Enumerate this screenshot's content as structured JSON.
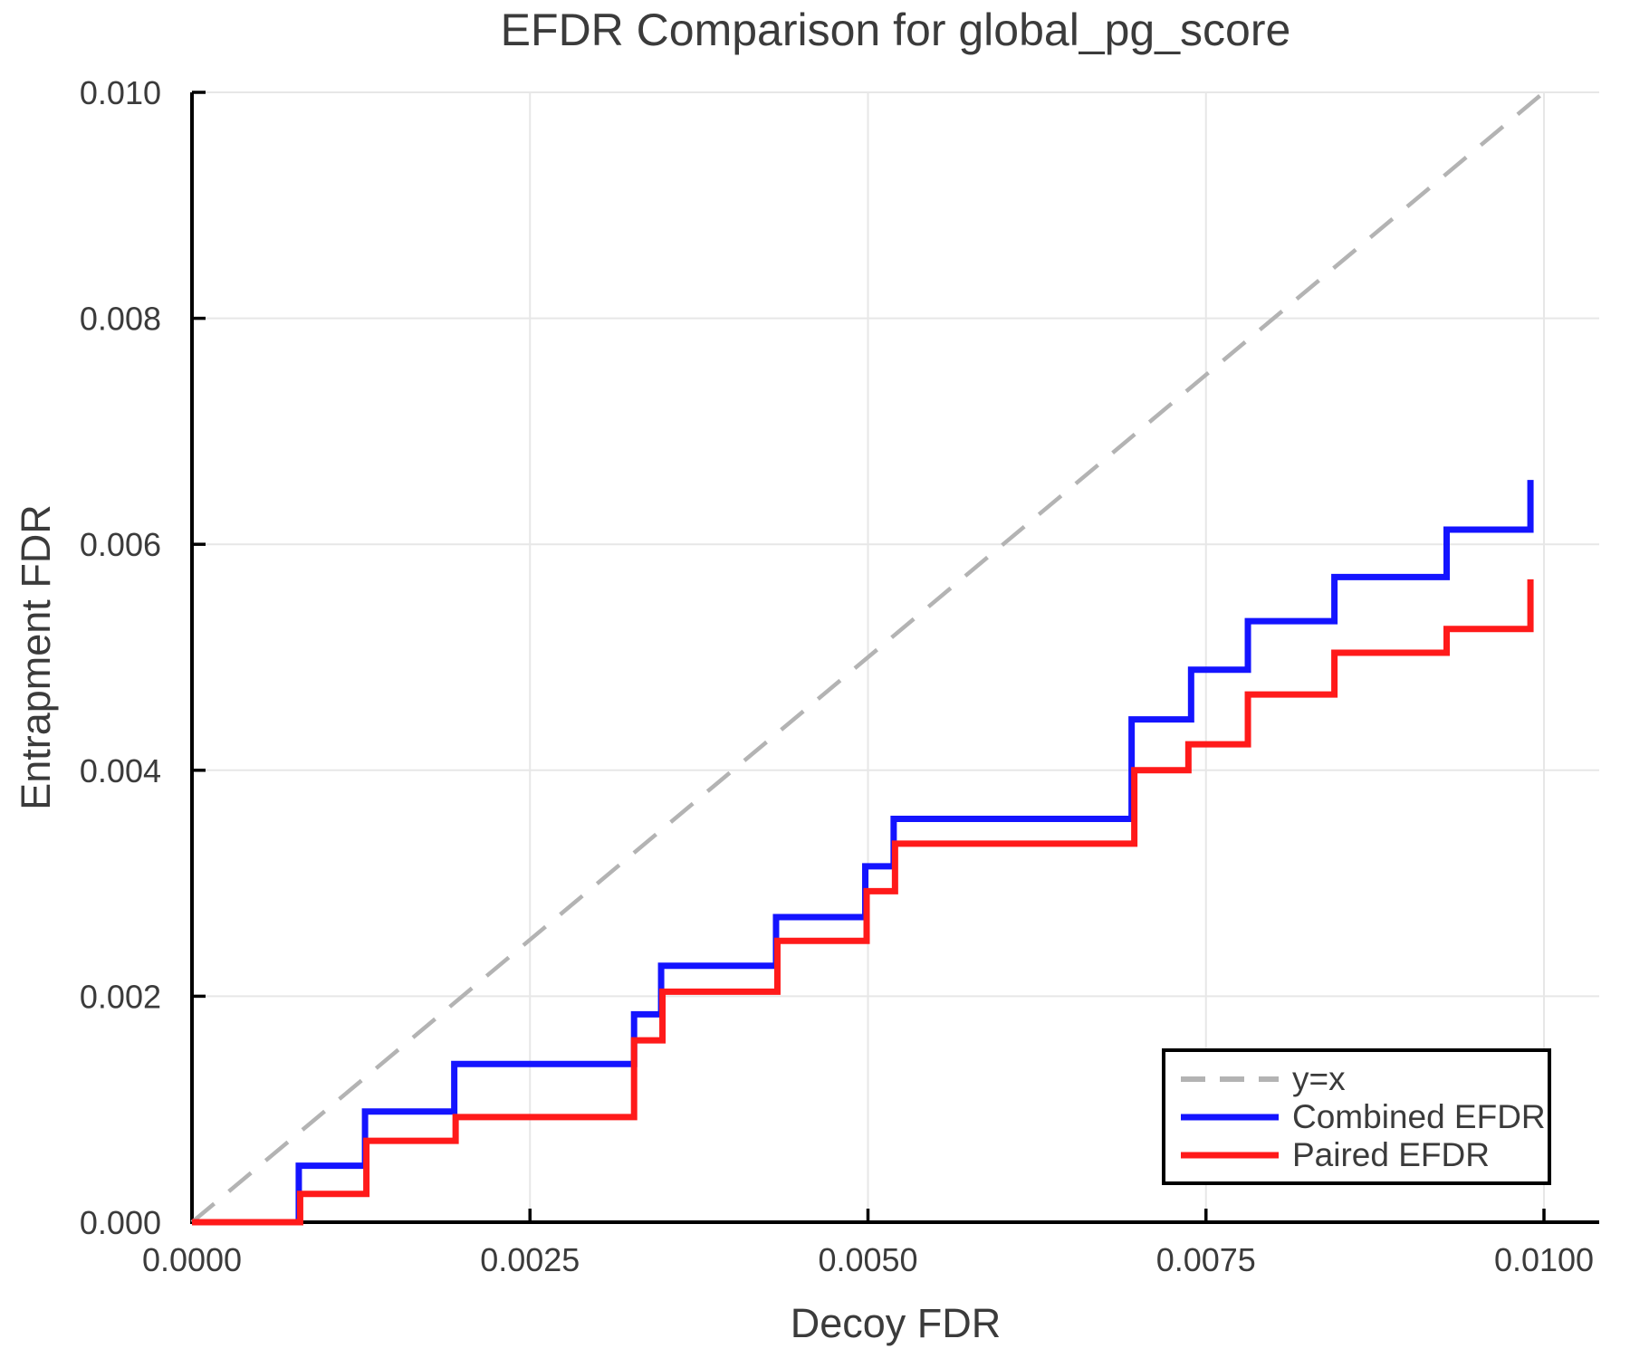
{
  "chart_data": {
    "type": "line",
    "title": "EFDR Comparison for global_pg_score",
    "xlabel": "Decoy FDR",
    "ylabel": "Entrapment FDR",
    "xlim": [
      0,
      0.01041
    ],
    "ylim": [
      0,
      0.01
    ],
    "grid": true,
    "legend_position": "lower right",
    "colors": {
      "grid": "#e7e7e7",
      "text": "#3b3b3b",
      "axis": "#000000",
      "background": "#ffffff"
    },
    "x_ticks": {
      "values": [
        0,
        0.0025,
        0.005,
        0.0075,
        0.01
      ],
      "labels": [
        "0.0000",
        "0.0025",
        "0.0050",
        "0.0075",
        "0.0100"
      ]
    },
    "y_ticks": {
      "values": [
        0,
        0.002,
        0.004,
        0.006,
        0.008,
        0.01
      ],
      "labels": [
        "0.000",
        "0.002",
        "0.004",
        "0.006",
        "0.008",
        "0.010"
      ]
    },
    "series": [
      {
        "name": "identity",
        "label": "y=x",
        "type": "line",
        "style": "dashed",
        "color": "#b3b3b3",
        "points": [
          [
            0,
            0
          ],
          [
            0.01,
            0.01
          ]
        ]
      },
      {
        "name": "combined-efdr",
        "label": "Combined EFDR",
        "type": "step_post",
        "style": "solid",
        "color": "#1414ff",
        "points": [
          [
            0,
            0
          ],
          [
            0.00079,
            0.0005
          ],
          [
            0.00128,
            0.00098
          ],
          [
            0.00194,
            0.0014
          ],
          [
            0.00327,
            0.00184
          ],
          [
            0.00347,
            0.00227
          ],
          [
            0.00432,
            0.0027
          ],
          [
            0.00498,
            0.00315
          ],
          [
            0.00519,
            0.00357
          ],
          [
            0.00695,
            0.00445
          ],
          [
            0.00739,
            0.00489
          ],
          [
            0.00781,
            0.00532
          ],
          [
            0.00845,
            0.00571
          ],
          [
            0.00928,
            0.00613
          ],
          [
            0.0099,
            0.00657
          ]
        ]
      },
      {
        "name": "paired-efdr",
        "label": "Paired EFDR",
        "type": "step_post",
        "style": "solid",
        "color": "#ff1a1a",
        "points": [
          [
            0,
            0
          ],
          [
            0.0008,
            0.00025
          ],
          [
            0.00129,
            0.00072
          ],
          [
            0.00195,
            0.00093
          ],
          [
            0.00327,
            0.00161
          ],
          [
            0.00348,
            0.00204
          ],
          [
            0.00433,
            0.00249
          ],
          [
            0.00499,
            0.00293
          ],
          [
            0.0052,
            0.00335
          ],
          [
            0.00697,
            0.004
          ],
          [
            0.00737,
            0.00423
          ],
          [
            0.00781,
            0.00467
          ],
          [
            0.00845,
            0.00504
          ],
          [
            0.00928,
            0.00525
          ],
          [
            0.0099,
            0.00569
          ]
        ]
      }
    ]
  }
}
